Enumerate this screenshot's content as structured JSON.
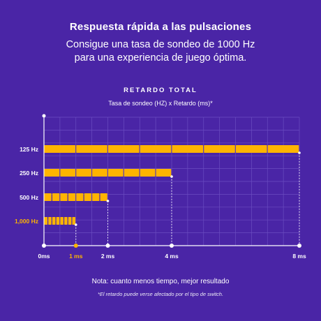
{
  "header": {
    "headline": "Respuesta rápida a las pulsaciones",
    "subline_1": "Consigue una tasa de sondeo de 1000 Hz",
    "subline_2": "para una experiencia de juego óptima."
  },
  "colors": {
    "background": "#4a25a6",
    "bar": "#ffb400",
    "highlight": "#ffb400",
    "grid": "#6a4cc0",
    "text": "#ffffff"
  },
  "chart_data": {
    "type": "bar",
    "orientation": "horizontal",
    "title": "RETARDO TOTAL",
    "subtitle": "Tasa de sondeo (HZ) x Retardo (ms)*",
    "categories": [
      "125 Hz",
      "250 Hz",
      "500 Hz",
      "1,000 Hz"
    ],
    "values": [
      8,
      4,
      2,
      1
    ],
    "segments": [
      8,
      8,
      8,
      8
    ],
    "highlight_category": "1,000 Hz",
    "xlim": [
      0,
      8
    ],
    "xticks": [
      {
        "value": 0,
        "label": "0ms"
      },
      {
        "value": 1,
        "label": "1 ms"
      },
      {
        "value": 2,
        "label": "2 ms"
      },
      {
        "value": 4,
        "label": "4 ms"
      },
      {
        "value": 8,
        "label": "8 ms"
      }
    ],
    "highlight_tick": "1 ms",
    "grid": true
  },
  "footer": {
    "note": "Nota: cuanto menos tiempo, mejor resultado",
    "disclaimer": "*El retardo puede verse afectado por el tipo de switch."
  }
}
